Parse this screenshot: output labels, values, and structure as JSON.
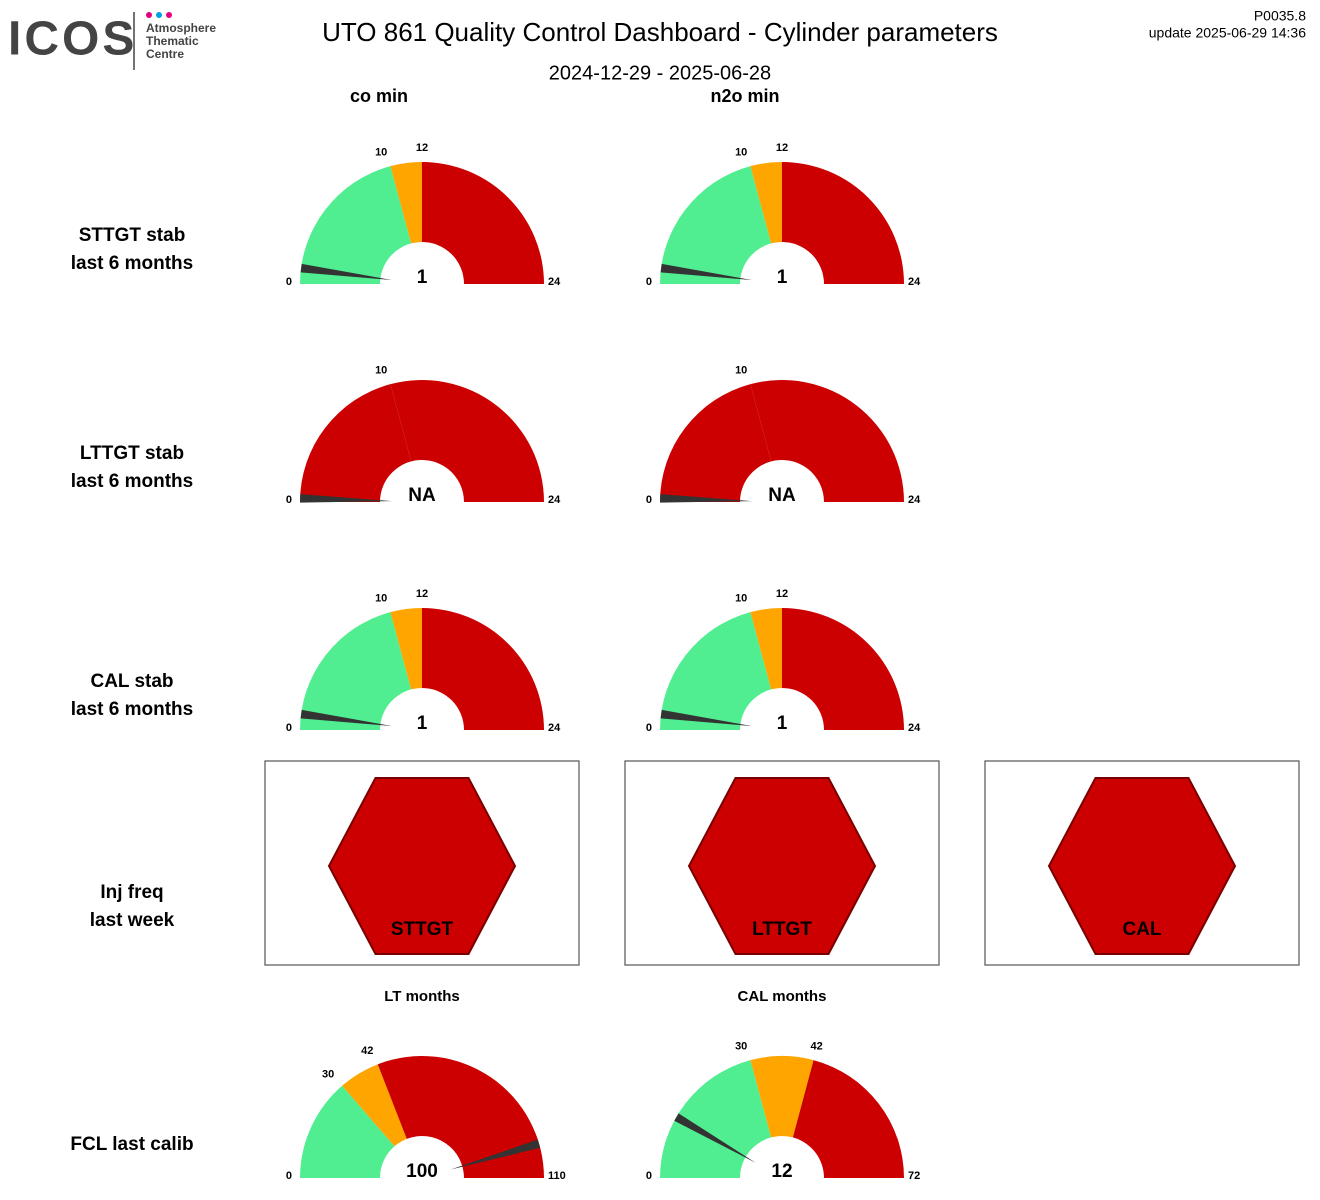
{
  "header": {
    "logo": "ICOS",
    "logo_sub": [
      "Atmosphere",
      "Thematic",
      "Centre"
    ],
    "title": "UTO 861 Quality Control Dashboard - Cylinder parameters",
    "period": "2024-12-29 - 2025-06-28",
    "version": "P0035.8",
    "update": "update  2025-06-29 14:36"
  },
  "columns": [
    "co min",
    "n2o min"
  ],
  "rows": [
    {
      "label": [
        "STTGT stab",
        "last 6 months"
      ],
      "gauges": [
        {
          "ticks": [
            0,
            10,
            12,
            24
          ],
          "band_colors": [
            "#50ee90",
            "#ffa500",
            "#cc0000"
          ],
          "value": 1
        },
        {
          "ticks": [
            0,
            10,
            12,
            24
          ],
          "band_colors": [
            "#50ee90",
            "#ffa500",
            "#cc0000"
          ],
          "value": 1
        }
      ]
    },
    {
      "label": [
        "LTTGT stab",
        "last 6 months"
      ],
      "gauges": [
        {
          "ticks": [
            0,
            10,
            24
          ],
          "band_colors": [
            "#cc0000",
            "#cc0000"
          ],
          "value": null,
          "value_label": "NA"
        },
        {
          "ticks": [
            0,
            10,
            24
          ],
          "band_colors": [
            "#cc0000",
            "#cc0000"
          ],
          "value": null,
          "value_label": "NA"
        }
      ]
    },
    {
      "label": [
        "CAL stab",
        "last 6 months"
      ],
      "gauges": [
        {
          "ticks": [
            0,
            10,
            12,
            24
          ],
          "band_colors": [
            "#50ee90",
            "#ffa500",
            "#cc0000"
          ],
          "value": 1
        },
        {
          "ticks": [
            0,
            10,
            12,
            24
          ],
          "band_colors": [
            "#50ee90",
            "#ffa500",
            "#cc0000"
          ],
          "value": 1
        }
      ]
    },
    {
      "label": [
        "Inj freq",
        "last week"
      ],
      "panels": [
        {
          "label": "STTGT",
          "color": "#cc0000"
        },
        {
          "label": "LTTGT",
          "color": "#cc0000"
        },
        {
          "label": "CAL",
          "color": "#cc0000"
        }
      ]
    },
    {
      "label": [
        "FCL last calib"
      ],
      "gauges": [
        {
          "title": "LT months",
          "ticks": [
            0,
            30,
            42,
            110
          ],
          "band_colors": [
            "#50ee90",
            "#ffa500",
            "#cc0000"
          ],
          "value": 100
        },
        {
          "title": "CAL months",
          "ticks": [
            0,
            30,
            42,
            72
          ],
          "band_colors": [
            "#50ee90",
            "#ffa500",
            "#cc0000"
          ],
          "value": 12
        }
      ]
    }
  ]
}
